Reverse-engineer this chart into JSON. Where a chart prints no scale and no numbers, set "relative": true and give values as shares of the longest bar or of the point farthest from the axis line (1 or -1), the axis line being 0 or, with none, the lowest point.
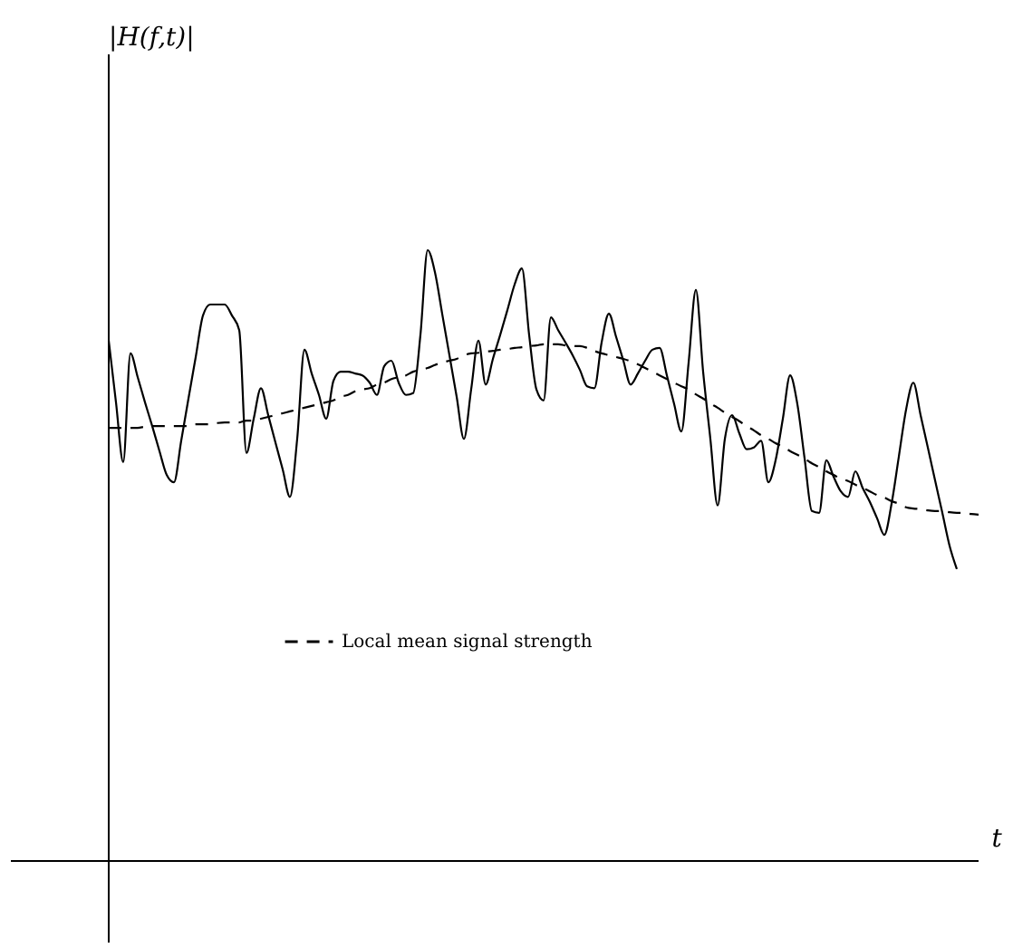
{
  "chart_data": {
    "type": "line",
    "relative": true,
    "xlabel": "t",
    "annotations": [
      "|H(f,t)|"
    ],
    "legend": "bottom",
    "categories": [
      null,
      null,
      null,
      null,
      null,
      null,
      null,
      null,
      null,
      null,
      null,
      null,
      null,
      null,
      null,
      null,
      null,
      null,
      null,
      null,
      null,
      null,
      null,
      null,
      null,
      null,
      null,
      null,
      null,
      null,
      null,
      null,
      null,
      null,
      null,
      null,
      null,
      null,
      null,
      null,
      null,
      null,
      null,
      null,
      null,
      null,
      null,
      null,
      null,
      null,
      null,
      null,
      null,
      null,
      null,
      null,
      null,
      null,
      null,
      null,
      null,
      null,
      null,
      null,
      null,
      null,
      null,
      null,
      null,
      null,
      null,
      null,
      null,
      null,
      null,
      null,
      null,
      null,
      null,
      null,
      null,
      null,
      null,
      null,
      null,
      null,
      null,
      null,
      null,
      null,
      null,
      null,
      null,
      null,
      null,
      null,
      null,
      null,
      null,
      null,
      null,
      null,
      null,
      null,
      null,
      null,
      null,
      null,
      null,
      null,
      null,
      null,
      null,
      null,
      null,
      null,
      null,
      null,
      null,
      null,
      null
    ],
    "series": [
      {
        "color": "#000000",
        "line_style": "solid",
        "values": [
          0.852,
          0.751,
          0.653,
          0.831,
          0.792,
          0.751,
          0.712,
          0.671,
          0.632,
          0.62,
          0.688,
          0.757,
          0.825,
          0.893,
          0.911,
          0.911,
          0.911,
          0.893,
          0.869,
          0.668,
          0.724,
          0.774,
          0.73,
          0.685,
          0.641,
          0.596,
          0.691,
          0.837,
          0.798,
          0.763,
          0.724,
          0.786,
          0.801,
          0.801,
          0.798,
          0.795,
          0.783,
          0.763,
          0.81,
          0.819,
          0.783,
          0.763,
          0.766,
          0.861,
          1.0,
          0.964,
          0.896,
          0.828,
          0.76,
          0.691,
          0.772,
          0.852,
          0.78,
          0.822,
          0.861,
          0.902,
          0.944,
          0.97,
          0.861,
          0.772,
          0.754,
          0.89,
          0.869,
          0.849,
          0.828,
          0.804,
          0.777,
          0.774,
          0.849,
          0.896,
          0.858,
          0.819,
          0.78,
          0.798,
          0.819,
          0.837,
          0.84,
          0.795,
          0.748,
          0.703,
          0.816,
          0.935,
          0.801,
          0.691,
          0.582,
          0.691,
          0.73,
          0.7,
          0.674,
          0.677,
          0.688,
          0.62,
          0.656,
          0.724,
          0.795,
          0.748,
          0.659,
          0.573,
          0.57,
          0.656,
          0.629,
          0.605,
          0.596,
          0.638,
          0.611,
          0.588,
          0.561,
          0.534,
          0.585,
          0.662,
          0.739,
          0.783,
          0.73,
          0.677,
          0.623,
          0.57,
          0.516,
          0.478,
          null,
          null,
          null
        ]
      },
      {
        "name": "Local mean signal strength",
        "color": "#000000",
        "line_style": "dashed",
        "values": [
          0.709,
          0.709,
          0.709,
          0.709,
          0.709,
          0.711,
          0.712,
          0.712,
          0.712,
          0.712,
          0.712,
          0.712,
          0.715,
          0.715,
          0.715,
          0.717,
          0.718,
          0.718,
          0.718,
          0.721,
          0.721,
          0.724,
          0.727,
          0.73,
          0.733,
          0.736,
          0.739,
          0.742,
          0.745,
          0.748,
          0.751,
          0.754,
          0.76,
          0.763,
          0.769,
          0.772,
          0.774,
          0.78,
          0.783,
          0.789,
          0.792,
          0.795,
          0.801,
          0.804,
          0.807,
          0.812,
          0.816,
          0.819,
          0.822,
          0.828,
          0.831,
          0.832,
          0.834,
          0.835,
          0.837,
          0.838,
          0.84,
          0.841,
          0.843,
          0.844,
          0.846,
          0.846,
          0.846,
          0.844,
          0.843,
          0.843,
          0.84,
          0.835,
          0.831,
          0.828,
          0.825,
          0.822,
          0.818,
          0.813,
          0.807,
          0.801,
          0.795,
          0.789,
          0.783,
          0.777,
          0.772,
          0.764,
          0.757,
          0.749,
          0.742,
          0.734,
          0.727,
          0.72,
          0.712,
          0.705,
          0.697,
          0.691,
          0.684,
          0.678,
          0.671,
          0.665,
          0.659,
          0.651,
          0.645,
          0.638,
          0.632,
          0.626,
          0.622,
          0.616,
          0.611,
          0.605,
          0.599,
          0.595,
          0.589,
          0.585,
          0.579,
          0.577,
          0.576,
          0.574,
          0.573,
          0.573,
          0.571,
          0.57,
          0.57,
          0.568,
          0.567
        ]
      }
    ]
  }
}
